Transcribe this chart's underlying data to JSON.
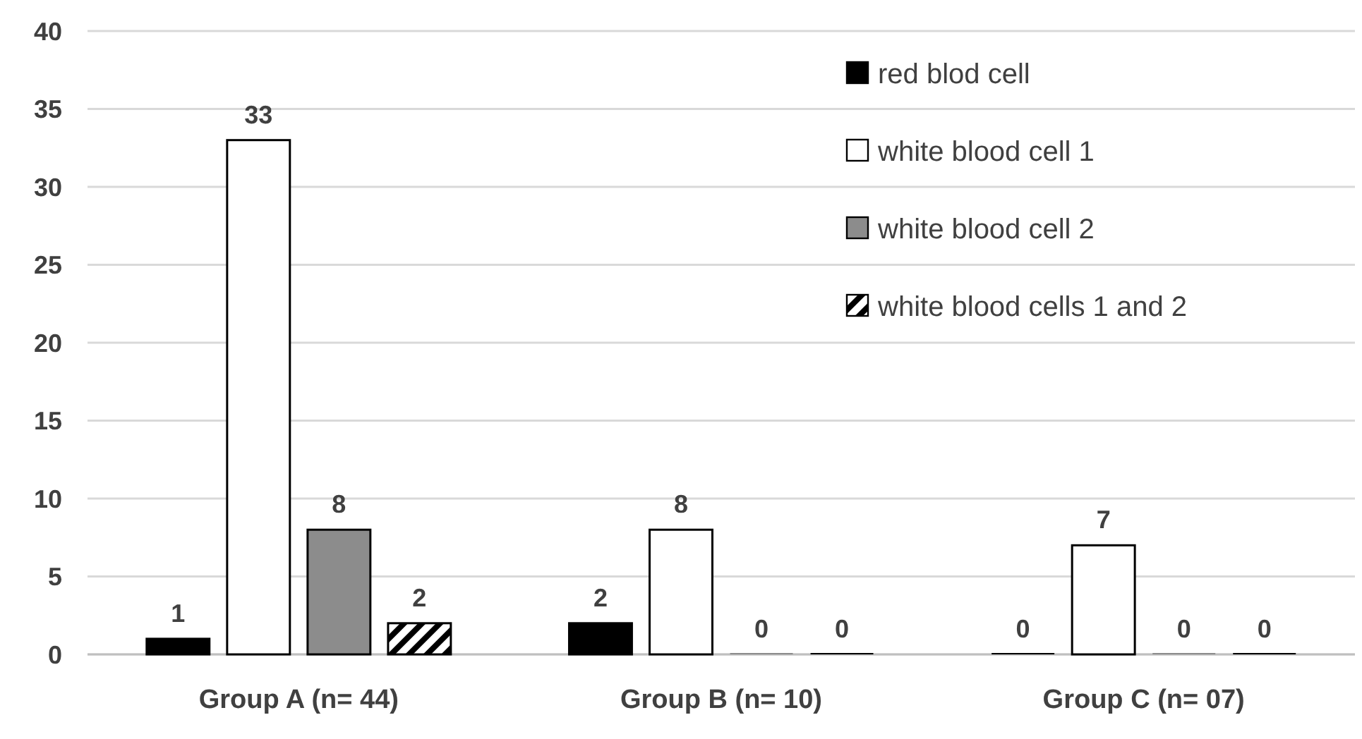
{
  "chart_data": {
    "type": "bar",
    "categories": [
      "Group A (n= 44)",
      "Group B (n= 10)",
      "Group C (n= 07)"
    ],
    "series": [
      {
        "name": "red blod cell",
        "color": "#000000",
        "values": [
          1,
          2,
          0
        ]
      },
      {
        "name": "white blood cell 1",
        "color": "#ffffff",
        "values": [
          33,
          8,
          7
        ]
      },
      {
        "name": "white blood cell 2",
        "color": "#8c8c8c",
        "values": [
          8,
          0,
          0
        ]
      },
      {
        "name": "white blood cells 1 and 2",
        "color": "#000000",
        "values": [
          2,
          0,
          0
        ]
      }
    ],
    "ylim": [
      0,
      40
    ],
    "yticks": [
      0,
      5,
      10,
      15,
      20,
      25,
      30,
      35,
      40
    ],
    "grid": "y",
    "legend": "top right",
    "data_labels": true
  }
}
